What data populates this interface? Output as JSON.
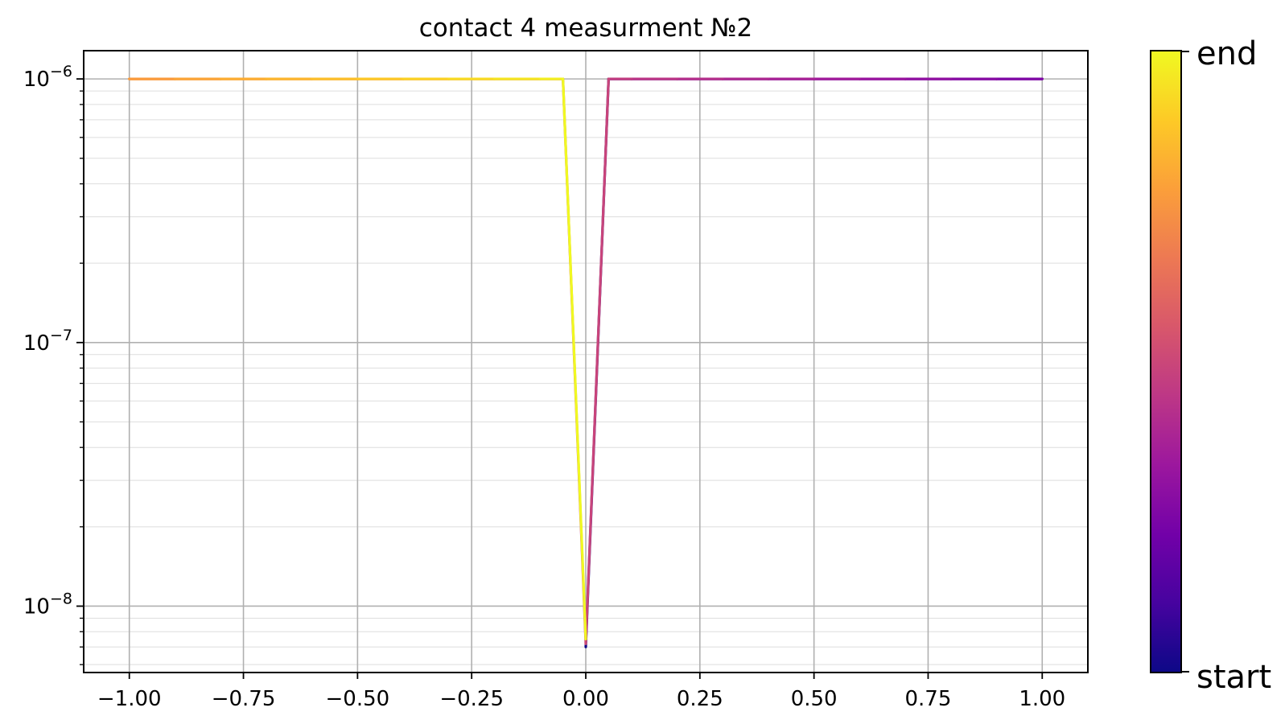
{
  "chart_data": {
    "type": "line",
    "title": "contact 4 measurment №2",
    "xlabel": "",
    "ylabel": "",
    "xlim": [
      -1.1,
      1.1
    ],
    "ylim": [
      5.6e-09,
      1.28e-06
    ],
    "yscale": "log",
    "grid": true,
    "x_ticks": [
      -1.0,
      -0.75,
      -0.5,
      -0.25,
      0.0,
      0.25,
      0.5,
      0.75,
      1.0
    ],
    "x_tick_labels": [
      "−1.00",
      "−0.75",
      "−0.50",
      "−0.25",
      "0.00",
      "0.25",
      "0.50",
      "0.75",
      "1.00"
    ],
    "y_ticks": [
      {
        "value": 1e-08,
        "base": "10",
        "exp": "−8"
      },
      {
        "value": 1e-07,
        "base": "10",
        "exp": "−7"
      },
      {
        "value": 1e-06,
        "base": "10",
        "exp": "−6"
      }
    ],
    "series": [
      {
        "x": [
          0.0,
          0.05,
          0.1,
          0.2,
          0.3,
          0.4,
          0.5,
          0.6,
          0.7,
          0.8,
          0.9,
          1.0,
          0.9,
          0.8,
          0.7,
          0.6,
          0.5,
          0.4,
          0.3,
          0.2,
          0.1,
          0.05,
          0.0,
          -0.05,
          -0.1,
          -0.2,
          -0.3,
          -0.4,
          -0.5,
          -0.6,
          -0.7,
          -0.8,
          -0.9,
          -1.0,
          -0.9,
          -0.8,
          -0.7,
          -0.6,
          -0.5,
          -0.4,
          -0.3,
          -0.2,
          -0.1,
          -0.05,
          0.0
        ],
        "y": [
          7e-09,
          1e-06,
          1e-06,
          1e-06,
          1e-06,
          1e-06,
          1e-06,
          1e-06,
          1e-06,
          1e-06,
          1e-06,
          1e-06,
          1e-06,
          1e-06,
          1e-06,
          1e-06,
          1e-06,
          1e-06,
          1e-06,
          1e-06,
          1e-06,
          1e-06,
          7.2e-09,
          1e-06,
          1e-06,
          1e-06,
          1e-06,
          1e-06,
          1e-06,
          1e-06,
          1e-06,
          1e-06,
          1e-06,
          1e-06,
          1e-06,
          1e-06,
          1e-06,
          1e-06,
          1e-06,
          1e-06,
          1e-06,
          1e-06,
          1e-06,
          1e-06,
          7.5e-09
        ]
      }
    ],
    "colormap": "plasma",
    "colormap_stops": [
      "#0d0887",
      "#46039f",
      "#7201a8",
      "#9c179e",
      "#bd3786",
      "#d8576b",
      "#ed7953",
      "#fb9f3a",
      "#fdca26",
      "#f0f921"
    ],
    "colorbar": {
      "top_label": "end",
      "bottom_label": "start"
    }
  }
}
